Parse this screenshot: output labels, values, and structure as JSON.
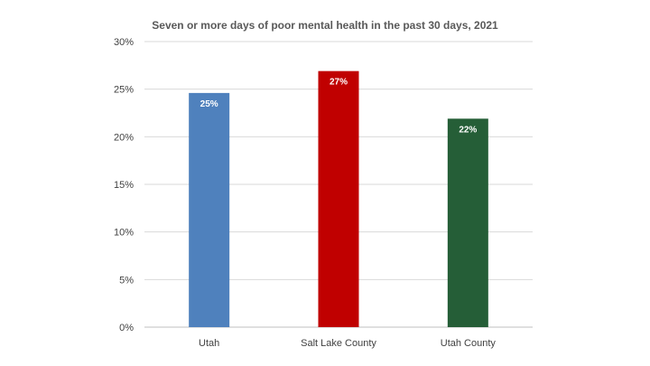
{
  "chart_data": {
    "type": "bar",
    "title": "Seven or more days of poor mental health in the past 30 days, 2021",
    "xlabel": "",
    "ylabel": "",
    "categories": [
      "Utah",
      "Salt Lake County",
      "Utah County"
    ],
    "values": [
      24.6,
      26.9,
      21.9
    ],
    "data_labels": [
      "25%",
      "27%",
      "22%"
    ],
    "colors": [
      "#4F81BD",
      "#C00000",
      "#255E37"
    ],
    "ylim": [
      0,
      30
    ],
    "yticks": [
      0,
      5,
      10,
      15,
      20,
      25,
      30
    ],
    "ytick_labels": [
      "0%",
      "5%",
      "10%",
      "15%",
      "20%",
      "25%",
      "30%"
    ],
    "grid": true,
    "legend": "none"
  }
}
